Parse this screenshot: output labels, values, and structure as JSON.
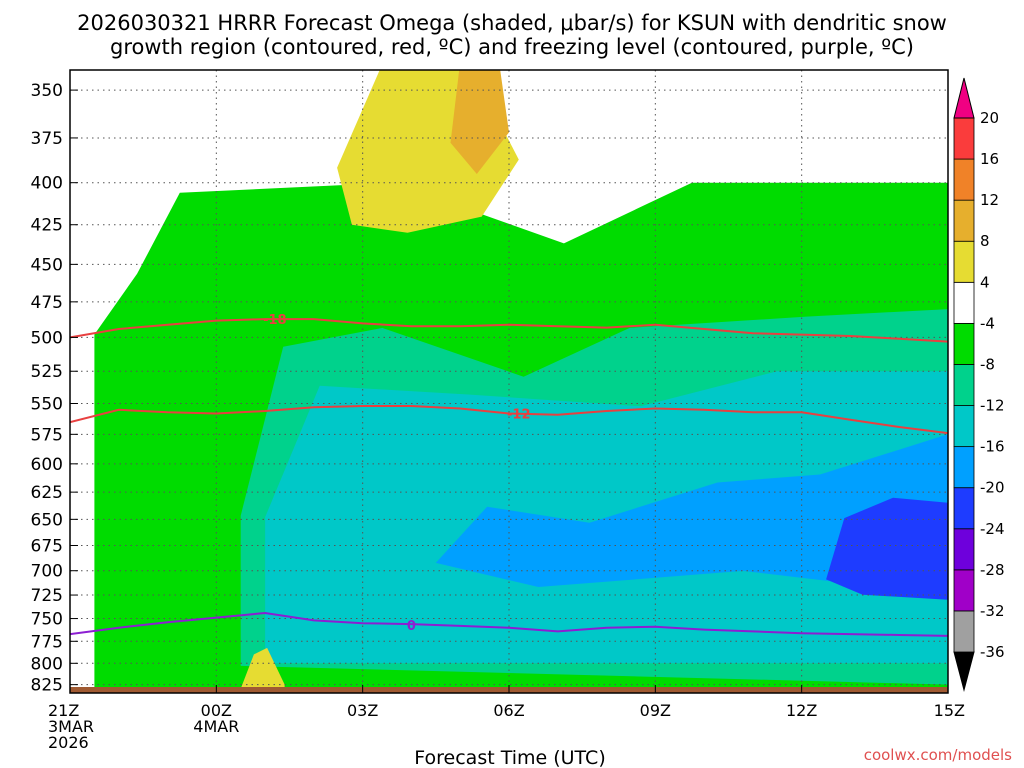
{
  "title": {
    "line1": "2026030321 HRRR Forecast Omega (shaded, μbar/s) for KSUN with dendritic snow",
    "line2": "growth region (contoured, red, ºC) and freezing level (contoured, purple, ºC)"
  },
  "credit": "coolwx.com/models",
  "chart_data": {
    "type": "heatmap",
    "xlabel": "Forecast Time (UTC)",
    "x_range_hours": [
      0,
      18
    ],
    "y_range_hPa": [
      340,
      835
    ],
    "y_scale": "log-pressure, inverted",
    "grid": true,
    "y_ticks": [
      350,
      375,
      400,
      425,
      450,
      475,
      500,
      525,
      550,
      575,
      600,
      625,
      650,
      675,
      700,
      725,
      750,
      775,
      800,
      825
    ],
    "x_ticks": [
      {
        "hour": 0,
        "lines": [
          "21Z",
          "3MAR",
          "2026"
        ]
      },
      {
        "hour": 3,
        "lines": [
          "00Z",
          "4MAR"
        ]
      },
      {
        "hour": 6,
        "lines": [
          "03Z"
        ]
      },
      {
        "hour": 9,
        "lines": [
          "06Z"
        ]
      },
      {
        "hour": 12,
        "lines": [
          "09Z"
        ]
      },
      {
        "hour": 15,
        "lines": [
          "12Z"
        ]
      },
      {
        "hour": 18,
        "lines": [
          "15Z"
        ]
      }
    ],
    "colorbar": {
      "levels": [
        -36,
        -32,
        -28,
        -24,
        -20,
        -16,
        -12,
        -8,
        -4,
        4,
        8,
        12,
        16,
        20
      ],
      "colors": [
        "#000000",
        "#a0a0a0",
        "#a000c8",
        "#6e00dc",
        "#1e3cff",
        "#00a0ff",
        "#00c8c8",
        "#00d28c",
        "#00dc00",
        "#ffffff",
        "#e6dc32",
        "#e6af2d",
        "#f08228",
        "#fa3c3c",
        "#f00082"
      ]
    },
    "omega_regions": [
      {
        "value_range": [
          -8,
          -4
        ],
        "color": "#00dc00",
        "hour_range": [
          0.5,
          18
        ],
        "p_range": [
          400,
          830
        ],
        "note": "broad weak ascent"
      },
      {
        "value_range": [
          -12,
          -8
        ],
        "color": "#00d28c",
        "hour_range": [
          3.5,
          18
        ],
        "p_range": [
          480,
          825
        ]
      },
      {
        "value_range": [
          -16,
          -12
        ],
        "color": "#00c8c8",
        "hour_range": [
          4,
          18
        ],
        "p_range": [
          525,
          800
        ]
      },
      {
        "value_range": [
          -20,
          -16
        ],
        "color": "#00a0ff",
        "hour_range": [
          7.5,
          18
        ],
        "p_range": [
          575,
          725
        ]
      },
      {
        "value_range": [
          -24,
          -20
        ],
        "color": "#1e3cff",
        "hour_range": [
          15.5,
          18
        ],
        "p_range": [
          630,
          730
        ]
      },
      {
        "value_range": [
          4,
          8
        ],
        "color": "#e6dc32",
        "hour_range": [
          5.4,
          9.2
        ],
        "p_range": [
          340,
          430
        ]
      },
      {
        "value_range": [
          8,
          12
        ],
        "color": "#e6af2d",
        "hour_range": [
          7.8,
          9.0
        ],
        "p_range": [
          340,
          395
        ]
      },
      {
        "value_range": [
          4,
          8
        ],
        "color": "#e6dc32",
        "hour_range": [
          3.5,
          4.4
        ],
        "p_range": [
          780,
          830
        ]
      }
    ],
    "contours": [
      {
        "name": "-18",
        "label": "-18",
        "color": "#e84040",
        "points": [
          [
            0,
            500
          ],
          [
            1,
            494
          ],
          [
            2,
            491
          ],
          [
            3,
            488
          ],
          [
            4,
            487
          ],
          [
            5,
            487
          ],
          [
            6,
            490
          ],
          [
            7,
            492
          ],
          [
            8,
            492
          ],
          [
            9,
            491
          ],
          [
            10,
            492
          ],
          [
            11,
            493
          ],
          [
            12,
            491
          ],
          [
            13,
            494
          ],
          [
            14,
            497
          ],
          [
            15,
            498
          ],
          [
            16,
            499
          ],
          [
            17,
            501
          ],
          [
            18,
            503
          ]
        ],
        "label_at": [
          4.2,
          487
        ]
      },
      {
        "name": "-12",
        "label": "-12",
        "color": "#e84040",
        "points": [
          [
            0,
            565
          ],
          [
            1,
            555
          ],
          [
            2,
            557
          ],
          [
            3,
            558
          ],
          [
            4,
            556
          ],
          [
            5,
            553
          ],
          [
            6,
            552
          ],
          [
            7,
            552
          ],
          [
            8,
            554
          ],
          [
            9,
            558
          ],
          [
            10,
            559
          ],
          [
            11,
            556
          ],
          [
            12,
            554
          ],
          [
            13,
            555
          ],
          [
            14,
            557
          ],
          [
            15,
            557
          ],
          [
            16,
            563
          ],
          [
            17,
            569
          ],
          [
            18,
            574
          ]
        ],
        "label_at": [
          9.2,
          558
        ]
      },
      {
        "name": "0",
        "label": "0",
        "color": "#8c1ed2",
        "points": [
          [
            0,
            767
          ],
          [
            1,
            760
          ],
          [
            2,
            754
          ],
          [
            3,
            749
          ],
          [
            4,
            744
          ],
          [
            5,
            752
          ],
          [
            6,
            755
          ],
          [
            7,
            756
          ],
          [
            8,
            758
          ],
          [
            9,
            760
          ],
          [
            10,
            764
          ],
          [
            11,
            760
          ],
          [
            12,
            759
          ],
          [
            13,
            762
          ],
          [
            14,
            764
          ],
          [
            15,
            766
          ],
          [
            16,
            767
          ],
          [
            17,
            768
          ],
          [
            18,
            769
          ]
        ],
        "label_at": [
          7.0,
          757
        ]
      }
    ],
    "terrain": {
      "color": "#a05a32",
      "p_surface": 835
    }
  }
}
